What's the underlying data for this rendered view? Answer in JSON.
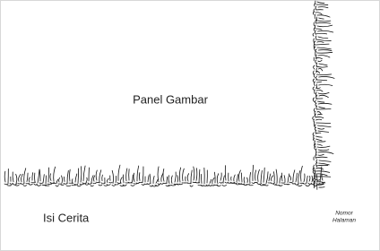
{
  "panel": {
    "label": "Panel Gambar"
  },
  "story": {
    "label": "Isi Cerita"
  },
  "page_number": {
    "lines": [
      "Nomor",
      "Halaman"
    ]
  }
}
